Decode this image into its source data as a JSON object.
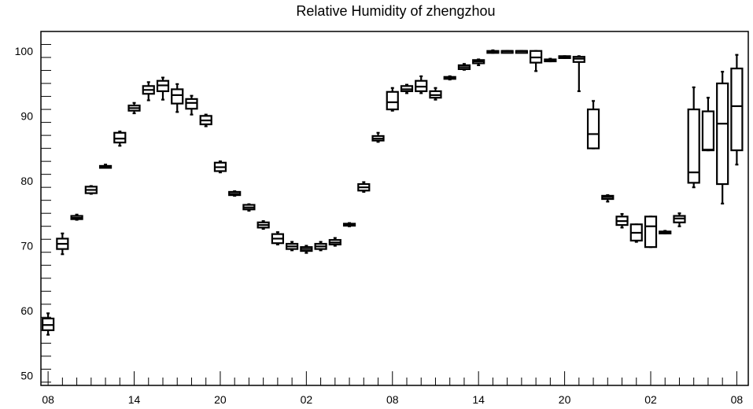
{
  "chart_data": {
    "type": "box",
    "title": "Relative Humidity of zhengzhou",
    "xlabel": "",
    "ylabel": "",
    "ylim": [
      48.5,
      103
    ],
    "x_index_range": [
      -0.5,
      48.8
    ],
    "yticks": [
      50,
      60,
      70,
      80,
      90,
      100
    ],
    "xtick_labels": [
      {
        "i": 0,
        "label": "08"
      },
      {
        "i": 6,
        "label": "14"
      },
      {
        "i": 12,
        "label": "20"
      },
      {
        "i": 18,
        "label": "02"
      },
      {
        "i": 24,
        "label": "08"
      },
      {
        "i": 30,
        "label": "14"
      },
      {
        "i": 36,
        "label": "20"
      },
      {
        "i": 42,
        "label": "02"
      },
      {
        "i": 48,
        "label": "08"
      }
    ],
    "boxes": [
      {
        "i": 0,
        "whisker_low": 56.3,
        "q1": 57.0,
        "median": 57.8,
        "q3": 58.8,
        "whisker_high": 59.6
      },
      {
        "i": 1,
        "whisker_low": 68.7,
        "q1": 69.5,
        "median": 70.3,
        "q3": 71.1,
        "whisker_high": 71.9
      },
      {
        "i": 2,
        "whisker_low": 74.0,
        "q1": 74.1,
        "median": 74.3,
        "q3": 74.6,
        "whisker_high": 74.8
      },
      {
        "i": 3,
        "whisker_low": 78.0,
        "q1": 78.1,
        "median": 78.6,
        "q3": 79.1,
        "whisker_high": 79.2
      },
      {
        "i": 4,
        "whisker_low": 82.0,
        "q1": 82.1,
        "median": 82.2,
        "q3": 82.3,
        "whisker_high": 82.5
      },
      {
        "i": 5,
        "whisker_low": 85.4,
        "q1": 85.9,
        "median": 86.5,
        "q3": 87.4,
        "whisker_high": 87.6
      },
      {
        "i": 6,
        "whisker_low": 90.4,
        "q1": 90.8,
        "median": 91.2,
        "q3": 91.6,
        "whisker_high": 92.0
      },
      {
        "i": 7,
        "whisker_low": 92.4,
        "q1": 93.4,
        "median": 94.0,
        "q3": 94.6,
        "whisker_high": 95.2
      },
      {
        "i": 8,
        "whisker_low": 92.5,
        "q1": 93.8,
        "median": 94.7,
        "q3": 95.4,
        "whisker_high": 95.9
      },
      {
        "i": 9,
        "whisker_low": 90.6,
        "q1": 91.9,
        "median": 93.2,
        "q3": 94.1,
        "whisker_high": 94.9
      },
      {
        "i": 10,
        "whisker_low": 90.2,
        "q1": 91.1,
        "median": 92.0,
        "q3": 92.6,
        "whisker_high": 93.1
      },
      {
        "i": 11,
        "whisker_low": 88.4,
        "q1": 88.7,
        "median": 89.3,
        "q3": 90.0,
        "whisker_high": 90.2
      },
      {
        "i": 12,
        "whisker_low": 81.3,
        "q1": 81.5,
        "median": 82.1,
        "q3": 82.8,
        "whisker_high": 83.0
      },
      {
        "i": 13,
        "whisker_low": 77.7,
        "q1": 77.8,
        "median": 78.0,
        "q3": 78.3,
        "whisker_high": 78.4
      },
      {
        "i": 14,
        "whisker_low": 75.4,
        "q1": 75.6,
        "median": 75.9,
        "q3": 76.3,
        "whisker_high": 76.4
      },
      {
        "i": 15,
        "whisker_low": 72.6,
        "q1": 72.8,
        "median": 73.2,
        "q3": 73.6,
        "whisker_high": 73.8
      },
      {
        "i": 16,
        "whisker_low": 70.2,
        "q1": 70.4,
        "median": 71.1,
        "q3": 71.8,
        "whisker_high": 72.1
      },
      {
        "i": 17,
        "whisker_low": 69.3,
        "q1": 69.5,
        "median": 69.9,
        "q3": 70.3,
        "whisker_high": 70.6
      },
      {
        "i": 18,
        "whisker_low": 68.9,
        "q1": 69.2,
        "median": 69.5,
        "q3": 69.8,
        "whisker_high": 70.0
      },
      {
        "i": 19,
        "whisker_low": 69.3,
        "q1": 69.5,
        "median": 69.9,
        "q3": 70.3,
        "whisker_high": 70.6
      },
      {
        "i": 20,
        "whisker_low": 70.0,
        "q1": 70.2,
        "median": 70.5,
        "q3": 70.9,
        "whisker_high": 71.2
      },
      {
        "i": 21,
        "whisker_low": 73.0,
        "q1": 73.1,
        "median": 73.2,
        "q3": 73.4,
        "whisker_high": 73.5
      },
      {
        "i": 22,
        "whisker_low": 78.3,
        "q1": 78.5,
        "median": 79.0,
        "q3": 79.5,
        "whisker_high": 79.8
      },
      {
        "i": 23,
        "whisker_low": 86.0,
        "q1": 86.2,
        "median": 86.5,
        "q3": 86.9,
        "whisker_high": 87.4
      },
      {
        "i": 24,
        "whisker_low": 90.8,
        "q1": 91.0,
        "median": 92.1,
        "q3": 93.7,
        "whisker_high": 94.3
      },
      {
        "i": 25,
        "whisker_low": 93.5,
        "q1": 93.8,
        "median": 94.1,
        "q3": 94.6,
        "whisker_high": 94.8
      },
      {
        "i": 26,
        "whisker_low": 93.5,
        "q1": 93.8,
        "median": 94.5,
        "q3": 95.4,
        "whisker_high": 96.1
      },
      {
        "i": 27,
        "whisker_low": 92.5,
        "q1": 92.8,
        "median": 93.2,
        "q3": 93.8,
        "whisker_high": 94.3
      },
      {
        "i": 28,
        "whisker_low": 95.6,
        "q1": 95.7,
        "median": 95.9,
        "q3": 96.0,
        "whisker_high": 96.1
      },
      {
        "i": 29,
        "whisker_low": 97.1,
        "q1": 97.2,
        "median": 97.5,
        "q3": 97.8,
        "whisker_high": 98.0
      },
      {
        "i": 30,
        "whisker_low": 97.8,
        "q1": 98.1,
        "median": 98.4,
        "q3": 98.6,
        "whisker_high": 98.7
      },
      {
        "i": 31,
        "whisker_low": 99.7,
        "q1": 99.7,
        "median": 99.8,
        "q3": 100.0,
        "whisker_high": 100.1
      },
      {
        "i": 32,
        "whisker_low": 99.9,
        "q1": 99.9,
        "median": 100.0,
        "q3": 100.0,
        "whisker_high": 100.0
      },
      {
        "i": 33,
        "whisker_low": 99.9,
        "q1": 99.9,
        "median": 100.0,
        "q3": 100.0,
        "whisker_high": 100.0
      },
      {
        "i": 34,
        "whisker_low": 96.9,
        "q1": 98.2,
        "median": 99.0,
        "q3": 100.0,
        "whisker_high": 100.0
      },
      {
        "i": 35,
        "whisker_low": 98.4,
        "q1": 98.5,
        "median": 98.6,
        "q3": 98.7,
        "whisker_high": 98.8
      },
      {
        "i": 36,
        "whisker_low": 98.9,
        "q1": 99.0,
        "median": 99.1,
        "q3": 99.2,
        "whisker_high": 99.2
      },
      {
        "i": 37,
        "whisker_low": 93.8,
        "q1": 98.3,
        "median": 98.8,
        "q3": 99.1,
        "whisker_high": 99.2
      },
      {
        "i": 38,
        "whisker_low": 85.0,
        "q1": 85.0,
        "median": 87.2,
        "q3": 91.0,
        "whisker_high": 92.3
      },
      {
        "i": 39,
        "whisker_low": 76.8,
        "q1": 77.2,
        "median": 77.5,
        "q3": 77.7,
        "whisker_high": 77.8
      },
      {
        "i": 40,
        "whisker_low": 72.8,
        "q1": 73.2,
        "median": 73.8,
        "q3": 74.5,
        "whisker_high": 74.9
      },
      {
        "i": 41,
        "whisker_low": 70.6,
        "q1": 70.8,
        "median": 72.0,
        "q3": 73.3,
        "whisker_high": 73.3
      },
      {
        "i": 42,
        "whisker_low": 69.8,
        "q1": 69.8,
        "median": 73.0,
        "q3": 74.5,
        "whisker_high": 74.5
      },
      {
        "i": 43,
        "whisker_low": 71.9,
        "q1": 71.9,
        "median": 72.1,
        "q3": 72.2,
        "whisker_high": 72.3
      },
      {
        "i": 44,
        "whisker_low": 73.0,
        "q1": 73.6,
        "median": 74.2,
        "q3": 74.6,
        "whisker_high": 75.0
      },
      {
        "i": 45,
        "whisker_low": 79.0,
        "q1": 79.7,
        "median": 81.3,
        "q3": 91.0,
        "whisker_high": 94.4
      },
      {
        "i": 46,
        "whisker_low": 84.7,
        "q1": 84.7,
        "median": 84.8,
        "q3": 90.7,
        "whisker_high": 92.8
      },
      {
        "i": 47,
        "whisker_low": 76.5,
        "q1": 79.5,
        "median": 88.8,
        "q3": 95.0,
        "whisker_high": 96.8
      },
      {
        "i": 48,
        "whisker_low": 82.5,
        "q1": 84.7,
        "median": 91.5,
        "q3": 97.3,
        "whisker_high": 99.4
      }
    ]
  }
}
